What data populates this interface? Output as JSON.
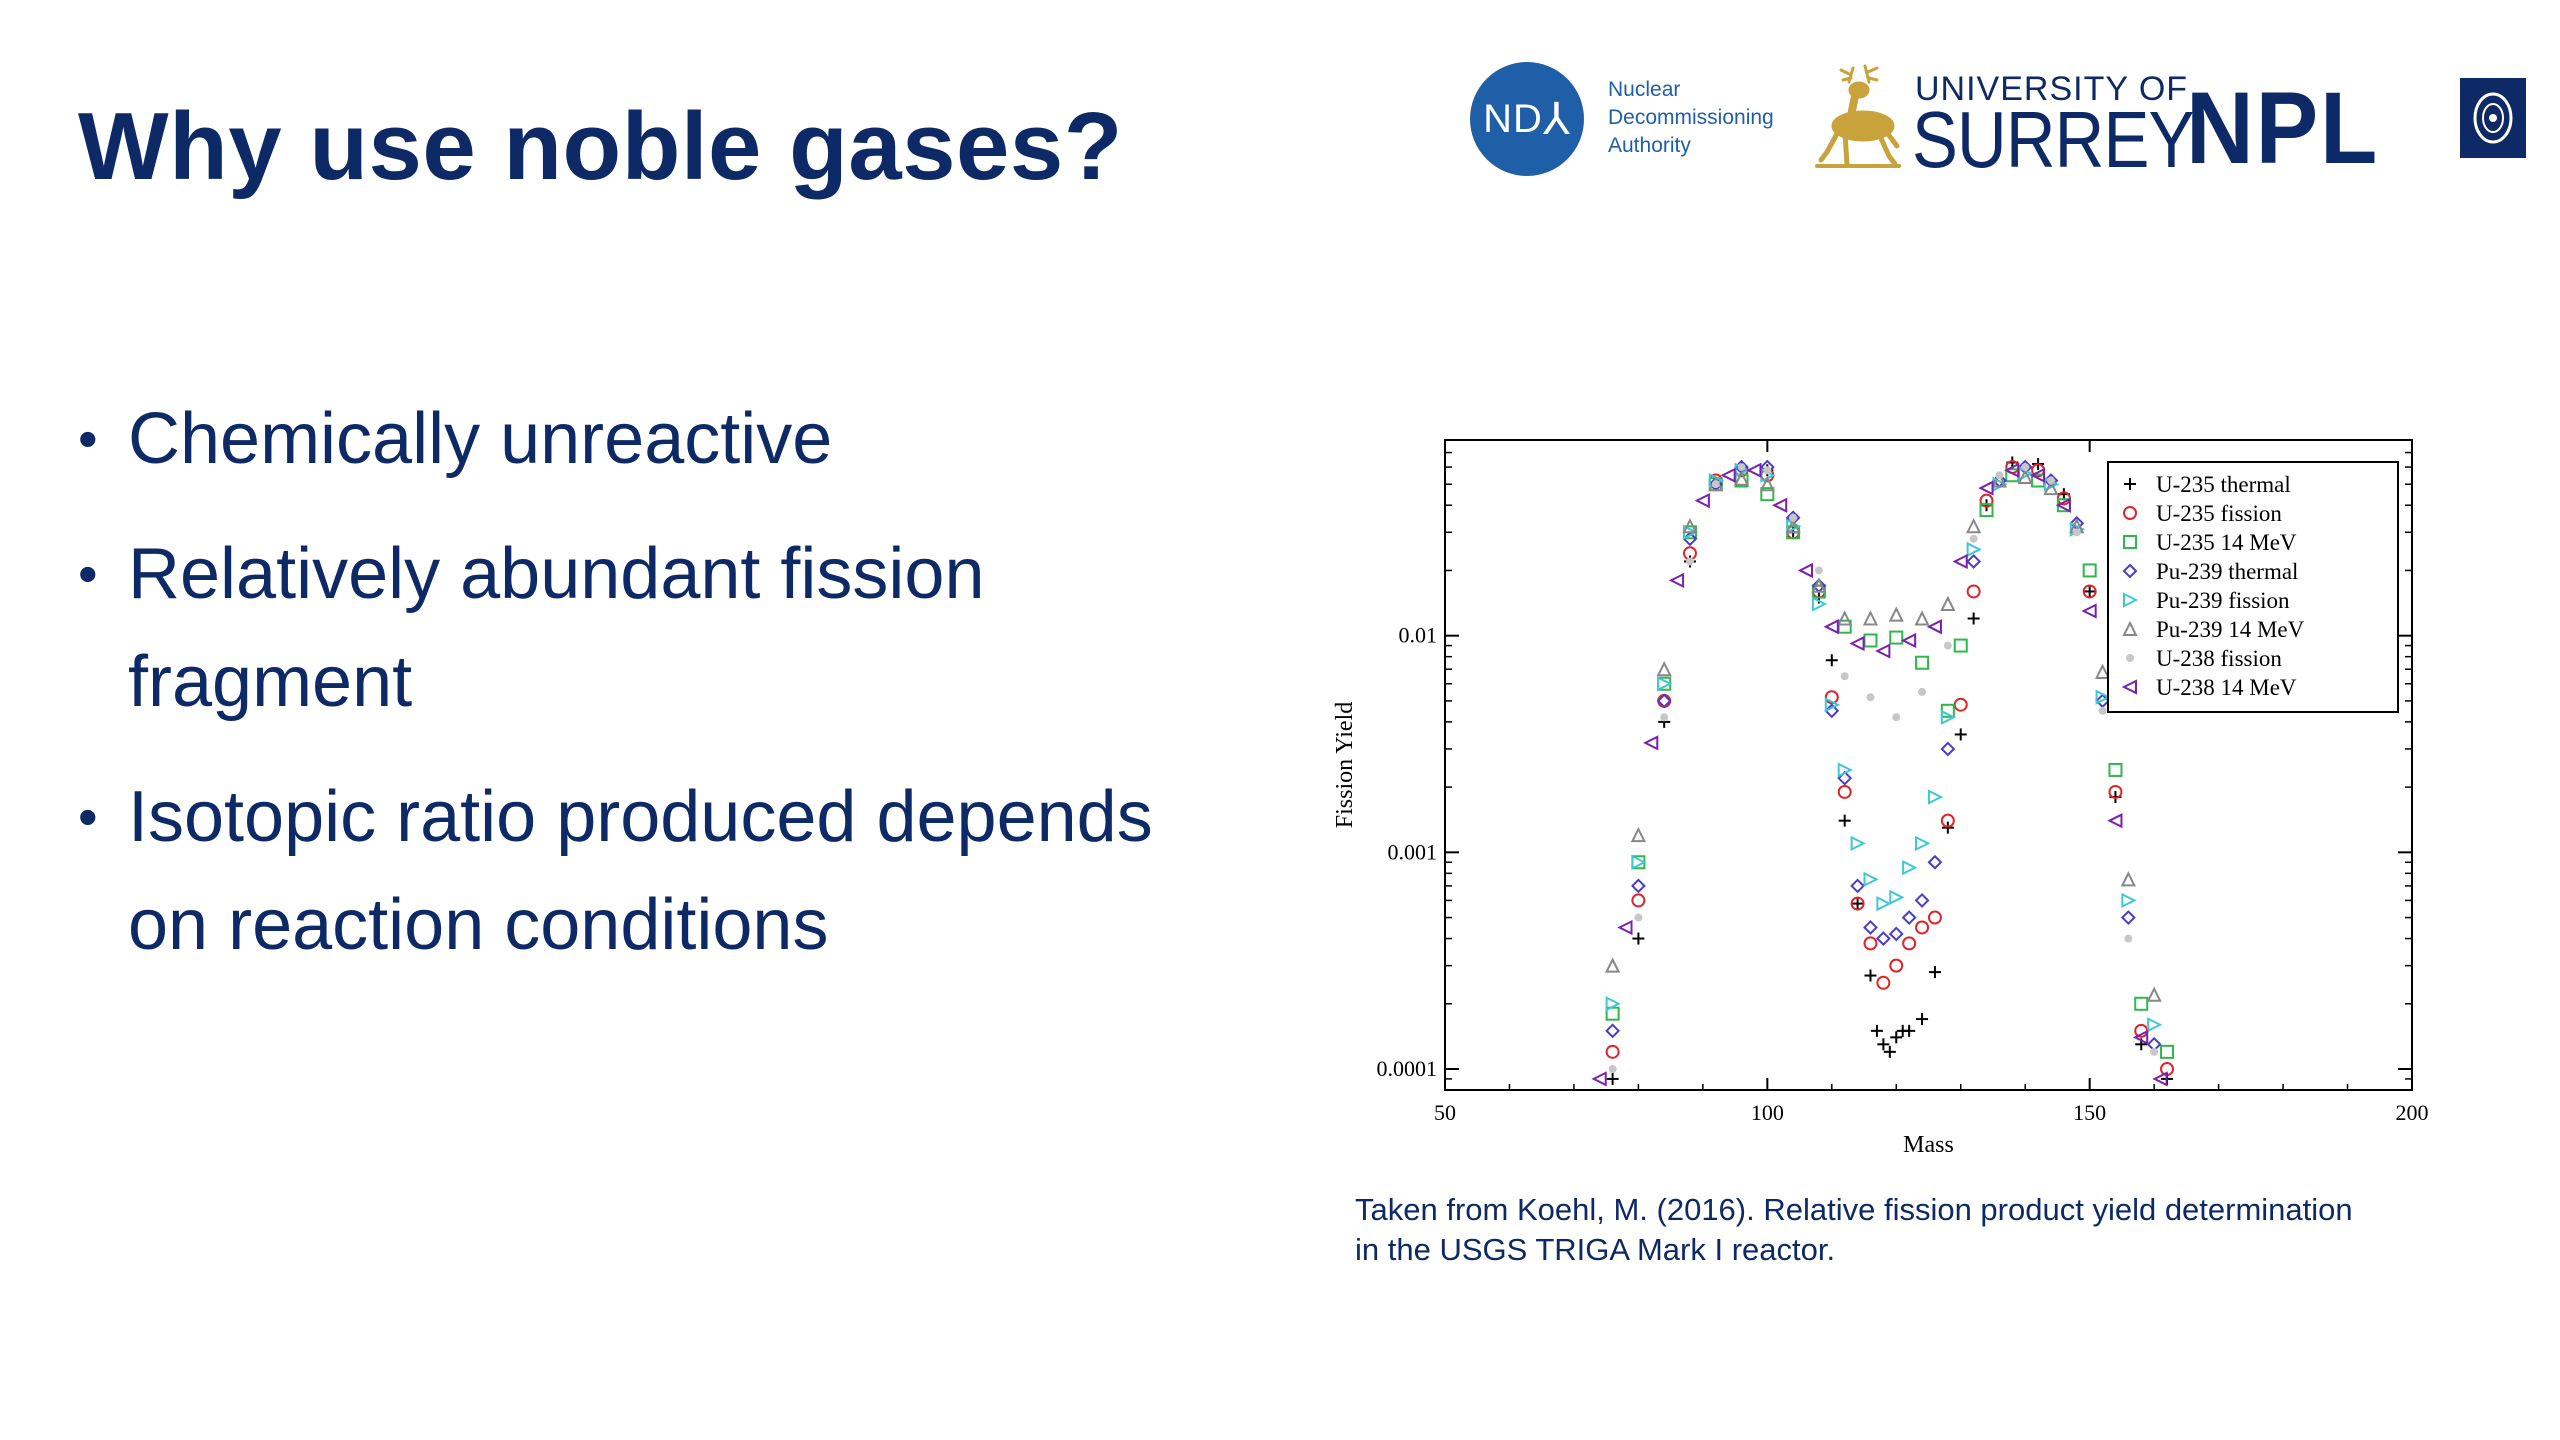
{
  "slide": {
    "title": "Why use noble gases?",
    "bullets": [
      {
        "lines": [
          "Chemically unreactive"
        ]
      },
      {
        "lines": [
          "Relatively abundant fission",
          "fragment"
        ]
      },
      {
        "lines": [
          "Isotopic ratio produced depends",
          "on reaction conditions"
        ]
      }
    ],
    "caption_lines": [
      "Taken from Koehl, M. (2016). Relative fission product yield determination",
      "in the USGS TRIGA Mark I reactor."
    ]
  },
  "logos": {
    "nda_mark": "ND",
    "nda_name_lines": [
      "Nuclear",
      "Decommissioning",
      "Authority"
    ],
    "surrey_small": "UNIVERSITY OF",
    "surrey_big": "SURREY",
    "npl": "NPL",
    "colors": {
      "nda": "#1f5fa8",
      "stag": "#c8a23a",
      "navy": "#0e2a66"
    }
  },
  "chart_data": {
    "type": "scatter",
    "title": "",
    "xlabel": "Mass",
    "ylabel": "Fission Yield",
    "xlim": [
      50,
      200
    ],
    "ylim": [
      8e-05,
      0.08
    ],
    "y_scale": "log",
    "xticks": [
      50,
      100,
      150,
      200
    ],
    "yticks": [
      0.0001,
      0.001,
      0.01
    ],
    "ytick_labels": [
      "0.0001",
      "0.001",
      "0.01"
    ],
    "legend_position": "top-right",
    "grid": false,
    "series": [
      {
        "name": "U-235 thermal",
        "marker": "plus",
        "color": "#000000",
        "x": [
          76,
          80,
          84,
          88,
          92,
          96,
          100,
          104,
          108,
          110,
          112,
          114,
          116,
          117,
          118,
          119,
          120,
          121,
          122,
          124,
          126,
          128,
          130,
          132,
          134,
          138,
          142,
          146,
          150,
          154,
          158,
          162
        ],
        "y": [
          9e-05,
          0.0004,
          0.004,
          0.022,
          0.05,
          0.06,
          0.058,
          0.03,
          0.015,
          0.0077,
          0.0014,
          0.00058,
          0.00027,
          0.00015,
          0.00013,
          0.00012,
          0.00014,
          0.00015,
          0.00015,
          0.00017,
          0.00028,
          0.0013,
          0.0035,
          0.012,
          0.04,
          0.063,
          0.062,
          0.045,
          0.016,
          0.0018,
          0.00013,
          9e-05
        ]
      },
      {
        "name": "U-235 fission",
        "marker": "circle",
        "color": "#e0242a",
        "x": [
          76,
          80,
          84,
          88,
          92,
          96,
          100,
          104,
          108,
          110,
          112,
          114,
          116,
          118,
          120,
          122,
          124,
          126,
          128,
          130,
          132,
          134,
          138,
          142,
          146,
          150,
          154,
          158,
          162
        ],
        "y": [
          0.00012,
          0.0006,
          0.005,
          0.024,
          0.052,
          0.058,
          0.055,
          0.03,
          0.016,
          0.0052,
          0.0019,
          0.00058,
          0.00038,
          0.00025,
          0.0003,
          0.00038,
          0.00045,
          0.0005,
          0.0014,
          0.0048,
          0.016,
          0.042,
          0.06,
          0.058,
          0.043,
          0.016,
          0.0019,
          0.00015,
          0.0001
        ]
      },
      {
        "name": "U-235 14 MeV",
        "marker": "square",
        "color": "#2fb84a",
        "x": [
          76,
          80,
          84,
          88,
          92,
          96,
          100,
          104,
          108,
          112,
          116,
          120,
          124,
          128,
          130,
          134,
          138,
          142,
          146,
          150,
          154,
          158,
          162
        ],
        "y": [
          0.00018,
          0.0009,
          0.006,
          0.03,
          0.05,
          0.052,
          0.045,
          0.03,
          0.016,
          0.011,
          0.0095,
          0.0098,
          0.0075,
          0.0045,
          0.009,
          0.038,
          0.055,
          0.052,
          0.04,
          0.02,
          0.0024,
          0.0002,
          0.00012
        ]
      },
      {
        "name": "Pu-239 thermal",
        "marker": "diamond",
        "color": "#4a3cc8",
        "x": [
          76,
          80,
          84,
          88,
          92,
          96,
          100,
          104,
          108,
          110,
          112,
          114,
          116,
          118,
          120,
          122,
          124,
          126,
          128,
          132,
          136,
          140,
          144,
          148,
          152,
          156,
          160
        ],
        "y": [
          0.00015,
          0.0007,
          0.005,
          0.028,
          0.05,
          0.06,
          0.06,
          0.035,
          0.017,
          0.0045,
          0.0022,
          0.0007,
          0.00045,
          0.0004,
          0.00042,
          0.0005,
          0.0006,
          0.0009,
          0.003,
          0.022,
          0.052,
          0.06,
          0.052,
          0.033,
          0.005,
          0.0005,
          0.00013
        ]
      },
      {
        "name": "Pu-239 fission",
        "marker": "triangle-right",
        "color": "#3fc7d6",
        "x": [
          76,
          80,
          84,
          88,
          92,
          96,
          100,
          104,
          108,
          110,
          112,
          114,
          116,
          118,
          120,
          122,
          124,
          126,
          128,
          132,
          136,
          140,
          144,
          148,
          152,
          156,
          160
        ],
        "y": [
          0.0002,
          0.0009,
          0.006,
          0.03,
          0.052,
          0.058,
          0.055,
          0.032,
          0.014,
          0.0048,
          0.0024,
          0.0011,
          0.00075,
          0.00058,
          0.00062,
          0.00085,
          0.0011,
          0.0018,
          0.0042,
          0.025,
          0.05,
          0.056,
          0.05,
          0.031,
          0.0052,
          0.0006,
          0.00016
        ]
      },
      {
        "name": "Pu-239 14 MeV",
        "marker": "triangle-up",
        "color": "#888888",
        "x": [
          76,
          80,
          84,
          88,
          92,
          96,
          100,
          104,
          108,
          112,
          116,
          120,
          124,
          128,
          132,
          136,
          140,
          144,
          148,
          152,
          156,
          160
        ],
        "y": [
          0.0003,
          0.0012,
          0.007,
          0.032,
          0.05,
          0.053,
          0.05,
          0.032,
          0.017,
          0.012,
          0.012,
          0.0125,
          0.012,
          0.014,
          0.032,
          0.052,
          0.054,
          0.048,
          0.032,
          0.0068,
          0.00075,
          0.00022
        ]
      },
      {
        "name": "U-238 fission",
        "marker": "dot",
        "color": "#c7c7c7",
        "x": [
          76,
          80,
          84,
          88,
          92,
          96,
          100,
          104,
          108,
          112,
          116,
          120,
          124,
          128,
          132,
          136,
          140,
          144,
          148,
          152,
          156,
          160
        ],
        "y": [
          0.0001,
          0.0005,
          0.0042,
          0.022,
          0.05,
          0.06,
          0.058,
          0.035,
          0.02,
          0.0065,
          0.0052,
          0.0042,
          0.0055,
          0.009,
          0.028,
          0.055,
          0.06,
          0.052,
          0.03,
          0.0045,
          0.0004,
          0.00012
        ]
      },
      {
        "name": "U-238 14 MeV",
        "marker": "triangle-left",
        "color": "#7a1fb0",
        "x": [
          74,
          78,
          82,
          86,
          90,
          94,
          98,
          102,
          106,
          110,
          114,
          118,
          122,
          126,
          130,
          134,
          138,
          142,
          146,
          150,
          154,
          158,
          161
        ],
        "y": [
          9e-05,
          0.00045,
          0.0032,
          0.018,
          0.042,
          0.055,
          0.058,
          0.04,
          0.02,
          0.011,
          0.0092,
          0.0085,
          0.0095,
          0.011,
          0.022,
          0.048,
          0.058,
          0.055,
          0.04,
          0.013,
          0.0014,
          0.00014,
          9e-05
        ]
      }
    ]
  }
}
